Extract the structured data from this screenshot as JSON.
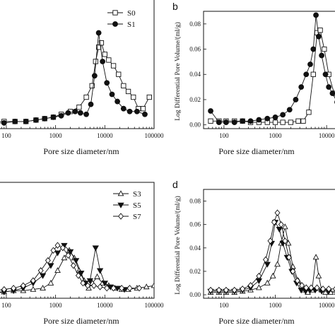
{
  "chart_data": [
    {
      "type": "line",
      "panel_label": "",
      "xlabel": "Pore size diameter/nm",
      "ylabel": "",
      "xscale": "log",
      "xlim": [
        50,
        100000
      ],
      "ylim": [
        -0.002,
        0.09
      ],
      "xticks": [
        "100",
        "1000",
        "10000",
        "100000"
      ],
      "yticks": [],
      "legend": [
        "S0",
        "S1"
      ],
      "legend_position": "top-right",
      "series": [
        {
          "name": "S0",
          "marker": "open-square",
          "x": [
            60,
            90,
            150,
            250,
            400,
            600,
            900,
            1300,
            2000,
            3000,
            4200,
            5500,
            6500,
            7500,
            8500,
            10000,
            12000,
            15000,
            19000,
            24000,
            30000,
            38000,
            48000,
            60000,
            80000
          ],
          "y": [
            0.003,
            0.003,
            0.003,
            0.003,
            0.004,
            0.005,
            0.006,
            0.008,
            0.01,
            0.013,
            0.02,
            0.028,
            0.045,
            0.055,
            0.058,
            0.05,
            0.046,
            0.042,
            0.036,
            0.028,
            0.024,
            0.02,
            0.012,
            0.012,
            0.02
          ]
        },
        {
          "name": "S1",
          "marker": "filled-circle",
          "x": [
            60,
            90,
            150,
            250,
            400,
            600,
            900,
            1300,
            1800,
            2500,
            3200,
            4200,
            5200,
            6200,
            7500,
            9000,
            11000,
            14000,
            18000,
            24000,
            32000,
            45000,
            65000
          ],
          "y": [
            0.002,
            0.002,
            0.003,
            0.003,
            0.004,
            0.005,
            0.006,
            0.007,
            0.009,
            0.01,
            0.009,
            0.008,
            0.015,
            0.035,
            0.065,
            0.045,
            0.03,
            0.022,
            0.017,
            0.012,
            0.01,
            0.01,
            0.008
          ]
        }
      ]
    },
    {
      "type": "line",
      "panel_label": "b",
      "xlabel": "Pore size diameter/nm",
      "ylabel": "Log Differential Pore Volume/(ml/g)",
      "xscale": "log",
      "xlim": [
        40,
        20000
      ],
      "ylim": [
        -0.003,
        0.09
      ],
      "xticks": [
        "100",
        "1000",
        "10000"
      ],
      "yticks": [
        "0.00",
        "0.02",
        "0.04",
        "0.06",
        "0.08"
      ],
      "series": [
        {
          "name": "",
          "marker": "open-square",
          "x": [
            55,
            80,
            110,
            160,
            230,
            330,
            480,
            700,
            1000,
            1400,
            2000,
            2800,
            3500,
            4500,
            5500,
            6500,
            7500,
            9000,
            11000,
            14000,
            18000
          ],
          "y": [
            0.003,
            0.003,
            0.003,
            0.003,
            0.003,
            0.002,
            0.002,
            0.002,
            0.002,
            0.002,
            0.002,
            0.003,
            0.003,
            0.01,
            0.04,
            0.073,
            0.075,
            0.06,
            0.04,
            0.025,
            0.015
          ]
        },
        {
          "name": "",
          "marker": "filled-circle",
          "x": [
            55,
            80,
            110,
            160,
            230,
            330,
            480,
            700,
            1000,
            1400,
            1900,
            2500,
            3200,
            4000,
            4800,
            5500,
            6200,
            7000,
            8000,
            9500,
            11000,
            13000,
            16000,
            20000
          ],
          "y": [
            0.011,
            0.002,
            0.002,
            0.002,
            0.003,
            0.003,
            0.004,
            0.005,
            0.006,
            0.008,
            0.012,
            0.02,
            0.03,
            0.04,
            0.048,
            0.06,
            0.087,
            0.07,
            0.055,
            0.04,
            0.03,
            0.025,
            0.018,
            0.008
          ]
        }
      ]
    },
    {
      "type": "line",
      "panel_label": "",
      "xlabel": "Pore size diameter/nm",
      "ylabel": "",
      "xscale": "log",
      "xlim": [
        50,
        100000
      ],
      "ylim": [
        -0.002,
        0.09
      ],
      "xticks": [
        "100",
        "1000",
        "10000",
        "100000"
      ],
      "yticks": [],
      "legend": [
        "S3",
        "S5",
        "S7"
      ],
      "legend_position": "top-right",
      "series": [
        {
          "name": "S3",
          "marker": "open-triangle-up",
          "x": [
            60,
            90,
            140,
            220,
            350,
            550,
            800,
            1100,
            1500,
            1900,
            2400,
            3000,
            3800,
            4700,
            5600,
            7000,
            9000,
            12000,
            16000,
            22000,
            30000,
            45000,
            70000,
            100000
          ],
          "y": [
            0.003,
            0.003,
            0.004,
            0.004,
            0.005,
            0.006,
            0.01,
            0.02,
            0.03,
            0.036,
            0.03,
            0.02,
            0.012,
            0.006,
            0.01,
            0.015,
            0.01,
            0.008,
            0.006,
            0.005,
            0.005,
            0.006,
            0.007,
            0.008
          ]
        },
        {
          "name": "S5",
          "marker": "filled-triangle-down",
          "x": [
            60,
            90,
            140,
            220,
            350,
            550,
            800,
            1100,
            1500,
            2000,
            2600,
            3300,
            4000,
            5000,
            6500,
            8000,
            10000,
            13000,
            18000,
            25000
          ],
          "y": [
            0.002,
            0.003,
            0.004,
            0.006,
            0.01,
            0.016,
            0.024,
            0.034,
            0.04,
            0.035,
            0.028,
            0.018,
            0.01,
            0.012,
            0.038,
            0.02,
            0.01,
            0.007,
            0.006,
            0.005
          ]
        },
        {
          "name": "S7",
          "marker": "open-diamond",
          "x": [
            60,
            90,
            140,
            220,
            350,
            500,
            700,
            900,
            1100,
            1400,
            1800,
            2300,
            2900,
            3600,
            4500,
            6000,
            8000,
            11000,
            15000,
            22000,
            32000,
            50000
          ],
          "y": [
            0.004,
            0.005,
            0.006,
            0.008,
            0.012,
            0.02,
            0.028,
            0.036,
            0.04,
            0.038,
            0.032,
            0.024,
            0.016,
            0.01,
            0.008,
            0.008,
            0.007,
            0.006,
            0.006,
            0.006,
            0.006,
            0.006
          ]
        }
      ]
    },
    {
      "type": "line",
      "panel_label": "d",
      "xlabel": "Pore size diameter/nm",
      "ylabel": "Log Differential Pore Volume/(ml/g)",
      "xscale": "log",
      "xlim": [
        40,
        20000
      ],
      "ylim": [
        -0.003,
        0.09
      ],
      "xticks": [
        "100",
        "1000",
        "10000"
      ],
      "yticks": [
        "0.00",
        "0.02",
        "0.04",
        "0.06",
        "0.08"
      ],
      "series": [
        {
          "name": "",
          "marker": "open-triangle-up",
          "x": [
            55,
            80,
            110,
            160,
            230,
            330,
            480,
            700,
            900,
            1100,
            1300,
            1550,
            1800,
            2200,
            2800,
            3500,
            4300,
            5200,
            6200,
            7000,
            8000,
            9500,
            12000,
            16000,
            20000
          ],
          "y": [
            0.002,
            0.002,
            0.002,
            0.002,
            0.003,
            0.004,
            0.006,
            0.01,
            0.016,
            0.026,
            0.044,
            0.058,
            0.044,
            0.024,
            0.012,
            0.004,
            0.002,
            0.004,
            0.032,
            0.016,
            0.004,
            0.002,
            0.002,
            0.002,
            0.002
          ]
        },
        {
          "name": "",
          "marker": "filled-triangle-down",
          "x": [
            55,
            80,
            110,
            160,
            230,
            330,
            480,
            700,
            850,
            1000,
            1200,
            1400,
            1700,
            2100,
            2600,
            3200,
            3900,
            4800,
            6000,
            8000,
            11000,
            16000,
            20000
          ],
          "y": [
            0.003,
            0.003,
            0.003,
            0.003,
            0.004,
            0.006,
            0.012,
            0.026,
            0.044,
            0.062,
            0.056,
            0.044,
            0.032,
            0.02,
            0.01,
            0.004,
            0.003,
            0.004,
            0.004,
            0.003,
            0.003,
            0.003,
            0.003
          ]
        },
        {
          "name": "",
          "marker": "open-diamond",
          "x": [
            55,
            80,
            110,
            160,
            230,
            330,
            480,
            650,
            800,
            950,
            1100,
            1300,
            1550,
            1850,
            2200,
            2700,
            3300,
            4000,
            5000,
            6500,
            8500,
            11000,
            15000,
            20000
          ],
          "y": [
            0.004,
            0.004,
            0.004,
            0.004,
            0.005,
            0.008,
            0.016,
            0.03,
            0.046,
            0.062,
            0.07,
            0.06,
            0.046,
            0.032,
            0.02,
            0.012,
            0.008,
            0.006,
            0.006,
            0.006,
            0.005,
            0.005,
            0.005,
            0.005
          ]
        }
      ]
    }
  ]
}
